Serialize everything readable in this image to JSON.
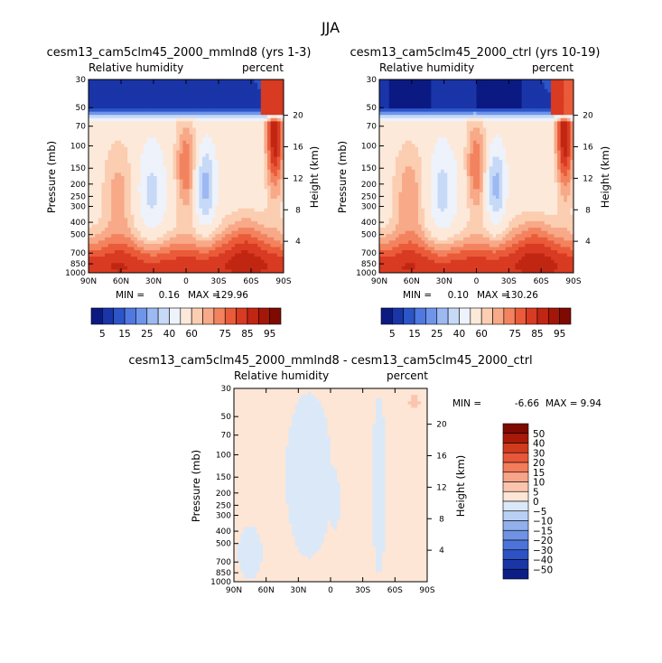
{
  "main_title": "JJA",
  "chart_data": [
    {
      "type": "heatmap",
      "title": "cesm13_cam5clm45_2000_mmlnd8 (yrs 1-3)",
      "left_subtitle": "Relative humidity",
      "right_subtitle": "percent",
      "ylabel": "Pressure (mb)",
      "ylabel_right": "Height (km)",
      "x_ticks": [
        "90N",
        "60N",
        "30N",
        "0",
        "30S",
        "60S",
        "90S"
      ],
      "x_values": [
        90,
        60,
        30,
        0,
        -30,
        -60,
        -90
      ],
      "xlim": [
        90,
        -90
      ],
      "y_ticks": [
        30,
        50,
        70,
        100,
        150,
        200,
        250,
        300,
        400,
        500,
        700,
        850,
        1000
      ],
      "ylim": [
        1000,
        30
      ],
      "y_scale": "log",
      "height_ticks": [
        4,
        8,
        12,
        16,
        20
      ],
      "stats": {
        "min_label": "MIN =",
        "min": "0.16",
        "max_label": "MAX =",
        "max": "129.96"
      },
      "field": "model"
    },
    {
      "type": "heatmap",
      "title": "cesm13_cam5clm45_2000_ctrl (yrs 10-19)",
      "left_subtitle": "Relative humidity",
      "right_subtitle": "percent",
      "ylabel": "Pressure (mb)",
      "ylabel_right": "Height (km)",
      "x_ticks": [
        "90N",
        "60N",
        "30N",
        "0",
        "30S",
        "60S",
        "90S"
      ],
      "x_values": [
        90,
        60,
        30,
        0,
        -30,
        -60,
        -90
      ],
      "xlim": [
        90,
        -90
      ],
      "y_ticks": [
        30,
        50,
        70,
        100,
        150,
        200,
        250,
        300,
        400,
        500,
        700,
        850,
        1000
      ],
      "ylim": [
        1000,
        30
      ],
      "y_scale": "log",
      "height_ticks": [
        4,
        8,
        12,
        16,
        20
      ],
      "stats": {
        "min_label": "MIN =",
        "min": "0.10",
        "max_label": "MAX =",
        "max": "130.26"
      },
      "field": "control"
    },
    {
      "type": "heatmap",
      "title": "cesm13_cam5clm45_2000_mmlnd8 - cesm13_cam5clm45_2000_ctrl",
      "left_subtitle": "Relative humidity",
      "right_subtitle": "percent",
      "ylabel": "Pressure (mb)",
      "ylabel_right": "Height (km)",
      "x_ticks": [
        "90N",
        "60N",
        "30N",
        "0",
        "30S",
        "60S",
        "90S"
      ],
      "x_values": [
        90,
        60,
        30,
        0,
        -30,
        -60,
        -90
      ],
      "xlim": [
        90,
        -90
      ],
      "y_ticks": [
        30,
        50,
        70,
        100,
        150,
        200,
        250,
        300,
        400,
        500,
        700,
        850,
        1000
      ],
      "ylim": [
        1000,
        30
      ],
      "y_scale": "log",
      "height_ticks": [
        4,
        8,
        12,
        16,
        20
      ],
      "stats": {
        "min_label": "MIN =",
        "min": "-6.66",
        "max_label": "MAX =",
        "max": "9.94"
      },
      "field": "difference"
    }
  ],
  "colorbar_main": {
    "orientation": "horizontal",
    "levels": [
      5,
      10,
      15,
      20,
      25,
      30,
      40,
      50,
      60,
      65,
      70,
      75,
      80,
      85,
      90,
      95
    ],
    "labels": [
      "5",
      "15",
      "25",
      "40",
      "60",
      "75",
      "85",
      "95"
    ],
    "colors": [
      "#0a1a82",
      "#1a35a8",
      "#2c55c8",
      "#4f78e0",
      "#6f95ea",
      "#9db9f2",
      "#c6d9f7",
      "#edf2fb",
      "#fde9d9",
      "#fbcdb1",
      "#f7a988",
      "#f3835f",
      "#ea5b3a",
      "#d83a22",
      "#c02612",
      "#a41708",
      "#7e0a02"
    ]
  },
  "colorbar_diff": {
    "orientation": "vertical",
    "levels": [
      -50,
      -40,
      -30,
      -20,
      -15,
      -10,
      -5,
      0,
      5,
      10,
      15,
      20,
      30,
      40,
      50
    ],
    "labels": [
      "50",
      "40",
      "30",
      "20",
      "15",
      "10",
      "5",
      "0",
      "−5",
      "−10",
      "−15",
      "−20",
      "−30",
      "−40",
      "−50"
    ],
    "colors": [
      "#7e0a02",
      "#a81a08",
      "#d13b1d",
      "#e8573a",
      "#f37c5a",
      "#f7a488",
      "#fbc5ad",
      "#fde6d6",
      "#dbe8f8",
      "#b8d0f3",
      "#92b0ec",
      "#6f92e5",
      "#4c73da",
      "#2c52c4",
      "#1a36a6",
      "#0b1e86"
    ]
  }
}
